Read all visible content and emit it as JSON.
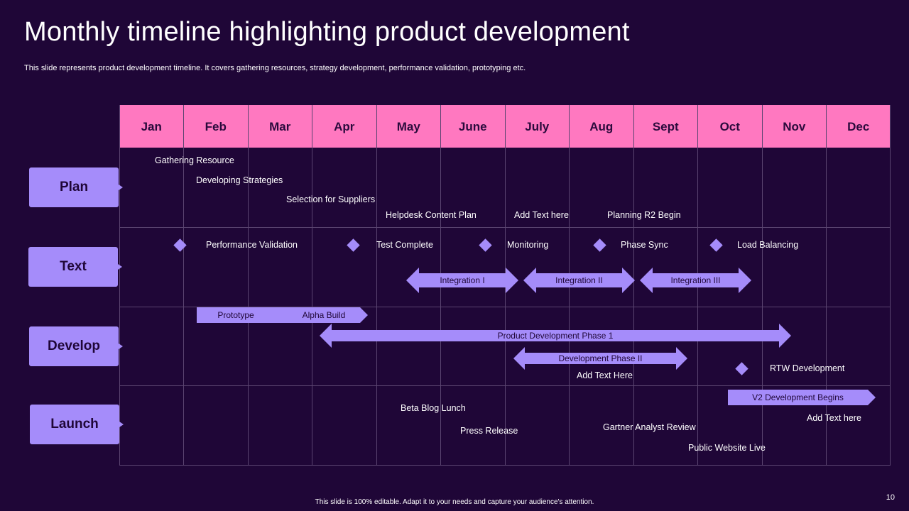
{
  "title": "Monthly timeline highlighting product development",
  "subtitle": "This slide represents product development timeline. It covers gathering resources, strategy development, performance validation, prototyping etc.",
  "months": [
    "Jan",
    "Feb",
    "Mar",
    "Apr",
    "May",
    "June",
    "July",
    "Aug",
    "Sept",
    "Oct",
    "Nov",
    "Dec"
  ],
  "rows": {
    "plan": "Plan",
    "text": "Text",
    "develop": "Develop",
    "launch": "Launch"
  },
  "plan_items": {
    "gathering": "Gathering Resource",
    "strategies": "Developing  Strategies",
    "suppliers": "Selection for Suppliers",
    "helpdesk": "Helpdesk Content Plan",
    "addtext": "Add Text here",
    "planning_r2": "Planning R2 Begin"
  },
  "text_items": {
    "perf": "Performance  Validation",
    "test": "Test Complete",
    "monitor": "Monitoring",
    "phase_sync": "Phase Sync",
    "load": "Load Balancing",
    "int1": "Integration  I",
    "int2": "Integration  II",
    "int3": "Integration  III"
  },
  "develop_items": {
    "prototype": "Prototype",
    "alpha": "Alpha Build",
    "pd1": "Product Development  Phase 1",
    "pd2": "Development  Phase II",
    "addtext": "Add Text Here",
    "rtw": "RTW Development"
  },
  "launch_items": {
    "v2": "V2 Development  Begins",
    "addtext": "Add Text here",
    "beta": "Beta Blog Lunch",
    "press": "Press Release",
    "gartner": "Gartner  Analyst Review",
    "public": "Public Website Live"
  },
  "footer": "This slide is 100% editable.  Adapt it to your needs and capture your audience's attention.",
  "page_number": "10",
  "colors": {
    "background": "#1f0637",
    "header": "#ff78c0",
    "accent": "#a58cfa"
  }
}
